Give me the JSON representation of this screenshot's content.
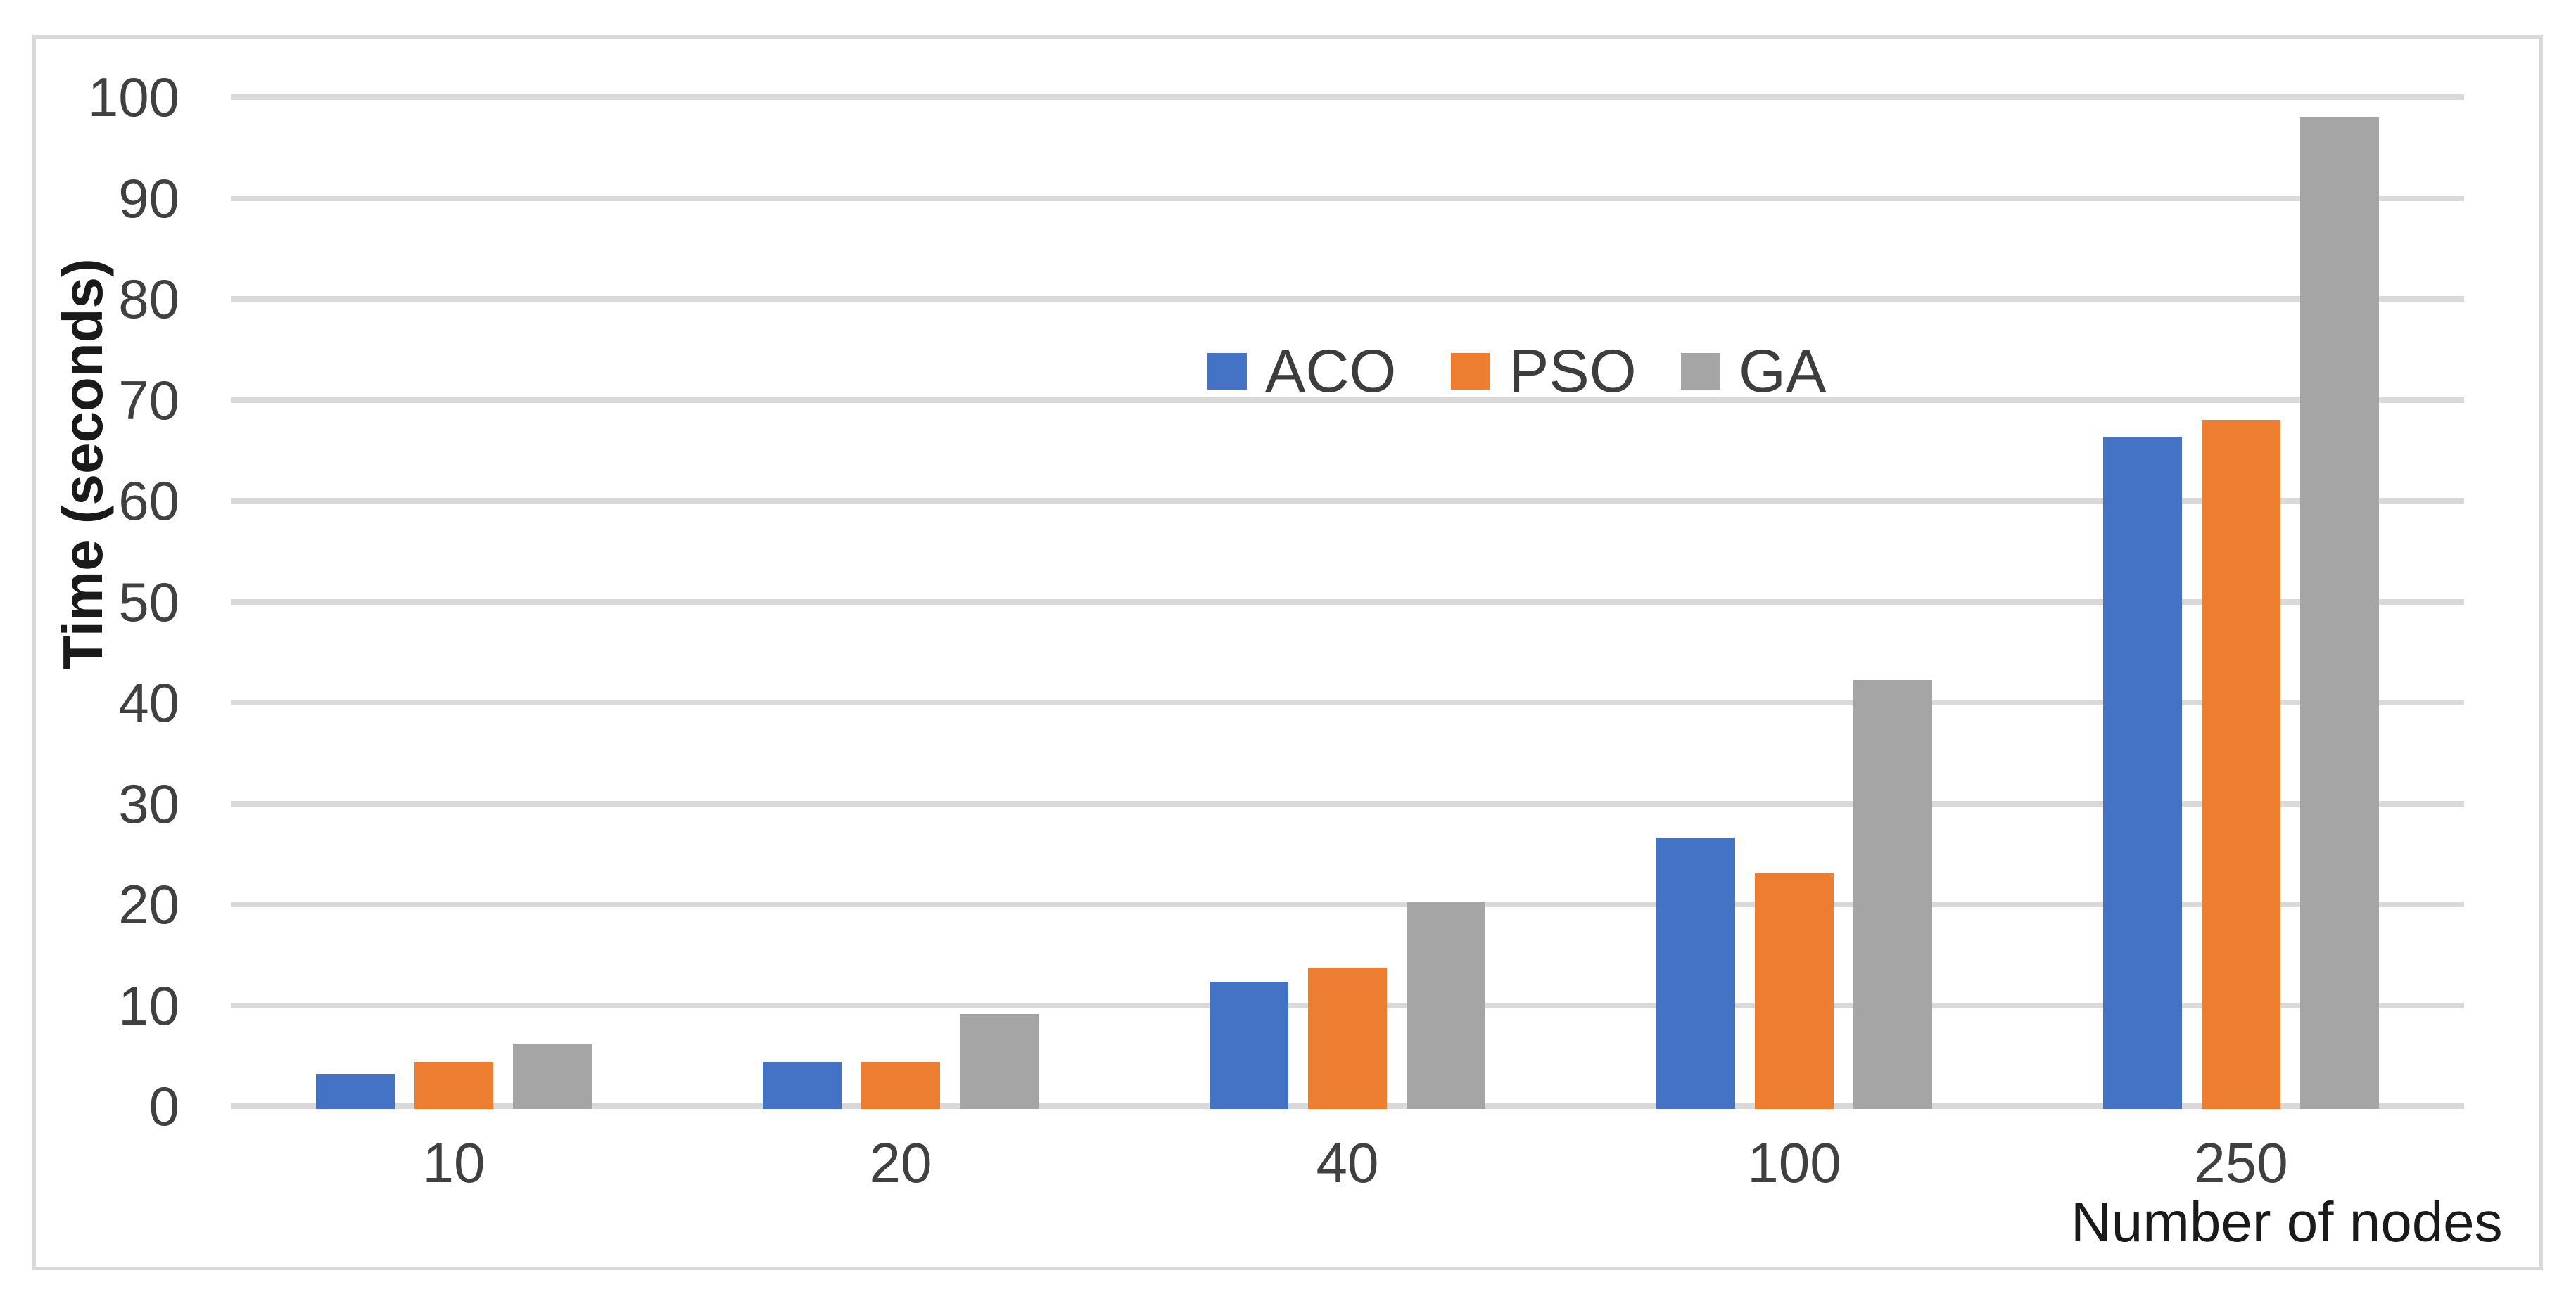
{
  "chart_data": {
    "type": "bar",
    "title": "",
    "xlabel": "Number of nodes",
    "ylabel": "Time (seconds)",
    "ylim": [
      0,
      100
    ],
    "yticks": [
      0,
      10,
      20,
      30,
      40,
      50,
      60,
      70,
      80,
      90,
      100
    ],
    "categories": [
      "10",
      "20",
      "40",
      "100",
      "250"
    ],
    "series": [
      {
        "name": "ACO",
        "color": "#4472C4",
        "values": [
          3.2,
          4.4,
          12.3,
          26.6,
          66.3
        ]
      },
      {
        "name": "PSO",
        "color": "#ED7D31",
        "values": [
          4.4,
          4.4,
          13.7,
          23.1,
          68.0
        ]
      },
      {
        "name": "GA",
        "color": "#A5A5A5",
        "values": [
          6.1,
          9.1,
          20.3,
          42.2,
          98.0
        ]
      }
    ],
    "legend_position": "top-center-inside",
    "grid": "horizontal",
    "colors": {
      "gridline": "#D9D9D9",
      "frame_border": "#D9D9D9",
      "tick_text": "#404040",
      "axis_title_text": "#1A1A1A",
      "legend_text": "#3D3D3D",
      "background": "#FFFFFF"
    }
  }
}
